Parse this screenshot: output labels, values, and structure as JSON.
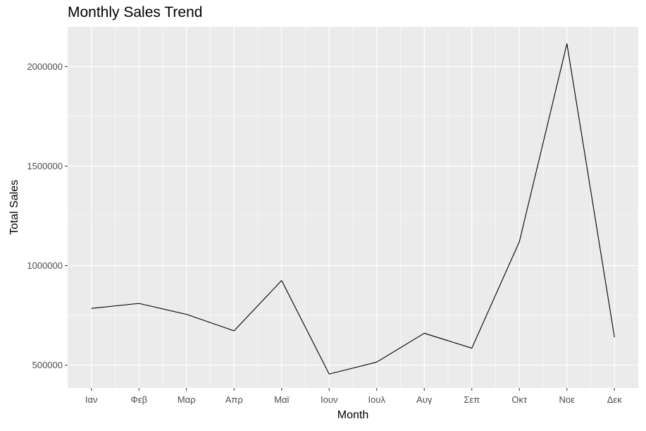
{
  "chart_data": {
    "type": "line",
    "title": "Monthly Sales Trend",
    "xlabel": "Month",
    "ylabel": "Total Sales",
    "categories": [
      "Ιαν",
      "Φεβ",
      "Μαρ",
      "Απρ",
      "Μαϊ",
      "Ιουν",
      "Ιουλ",
      "Αυγ",
      "Σεπ",
      "Οκτ",
      "Νοε",
      "Δεκ"
    ],
    "values": [
      785000,
      810000,
      755000,
      672000,
      925000,
      455000,
      515000,
      660000,
      585000,
      1120000,
      2115000,
      640000
    ],
    "yticks": [
      500000,
      1000000,
      1500000,
      2000000
    ],
    "ytick_labels": [
      "500000",
      "1000000",
      "1500000",
      "2000000"
    ],
    "ylim": [
      385000,
      2200000
    ],
    "grid": true,
    "panel_color": "#ebebeb",
    "line_color": "#000000"
  }
}
